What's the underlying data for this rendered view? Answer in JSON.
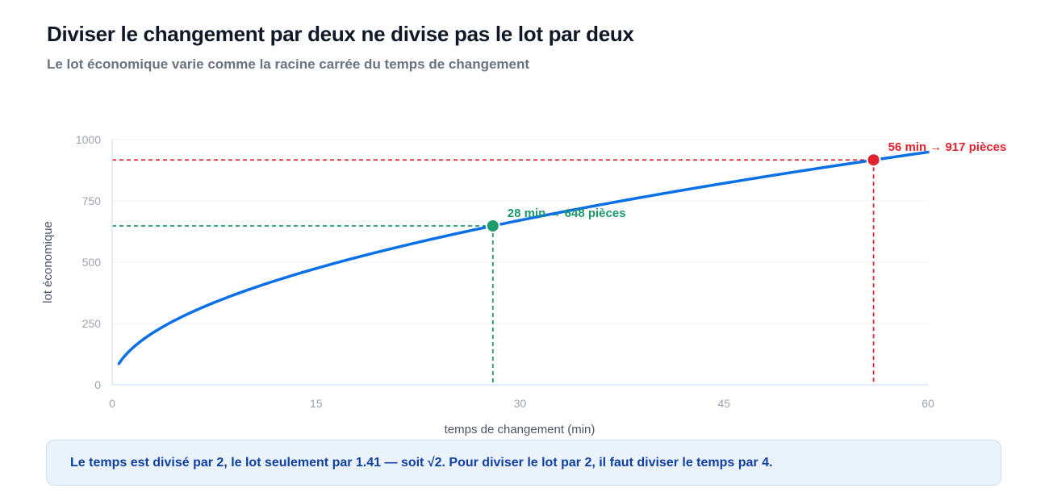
{
  "header": {
    "title": "Diviser le changement par deux ne divise pas le lot par deux",
    "subtitle": "Le lot économique varie comme la racine carrée du temps de changement"
  },
  "callout": {
    "text": "Le temps est divisé par 2, le lot seulement par 1.41 — soit √2. Pour diviser le lot par 2, il faut diviser le temps par 4."
  },
  "colors": {
    "curve": "#0b6fe6",
    "green": "#1c9a6c",
    "red": "#e0242f",
    "grid": "#eef0f3",
    "axis": "#dbe7f6"
  },
  "chart_data": {
    "type": "line",
    "xlabel": "temps de changement (min)",
    "ylabel": "lot économique",
    "xlim": [
      0,
      60
    ],
    "ylim": [
      0,
      1000
    ],
    "xticks": [
      "0",
      "15",
      "30",
      "45",
      "60"
    ],
    "yticks": [
      "0",
      "250",
      "500",
      "750",
      "1000"
    ],
    "grid": true,
    "series": [
      {
        "function": "122.5 * sqrt(x)",
        "x_range": [
          0.5,
          60
        ]
      }
    ],
    "points": [
      {
        "x": 28,
        "y": 648,
        "label": "28 min → 648 pièces",
        "color": "green"
      },
      {
        "x": 56,
        "y": 917,
        "label": "56 min → 917 pièces",
        "color": "red"
      }
    ]
  }
}
